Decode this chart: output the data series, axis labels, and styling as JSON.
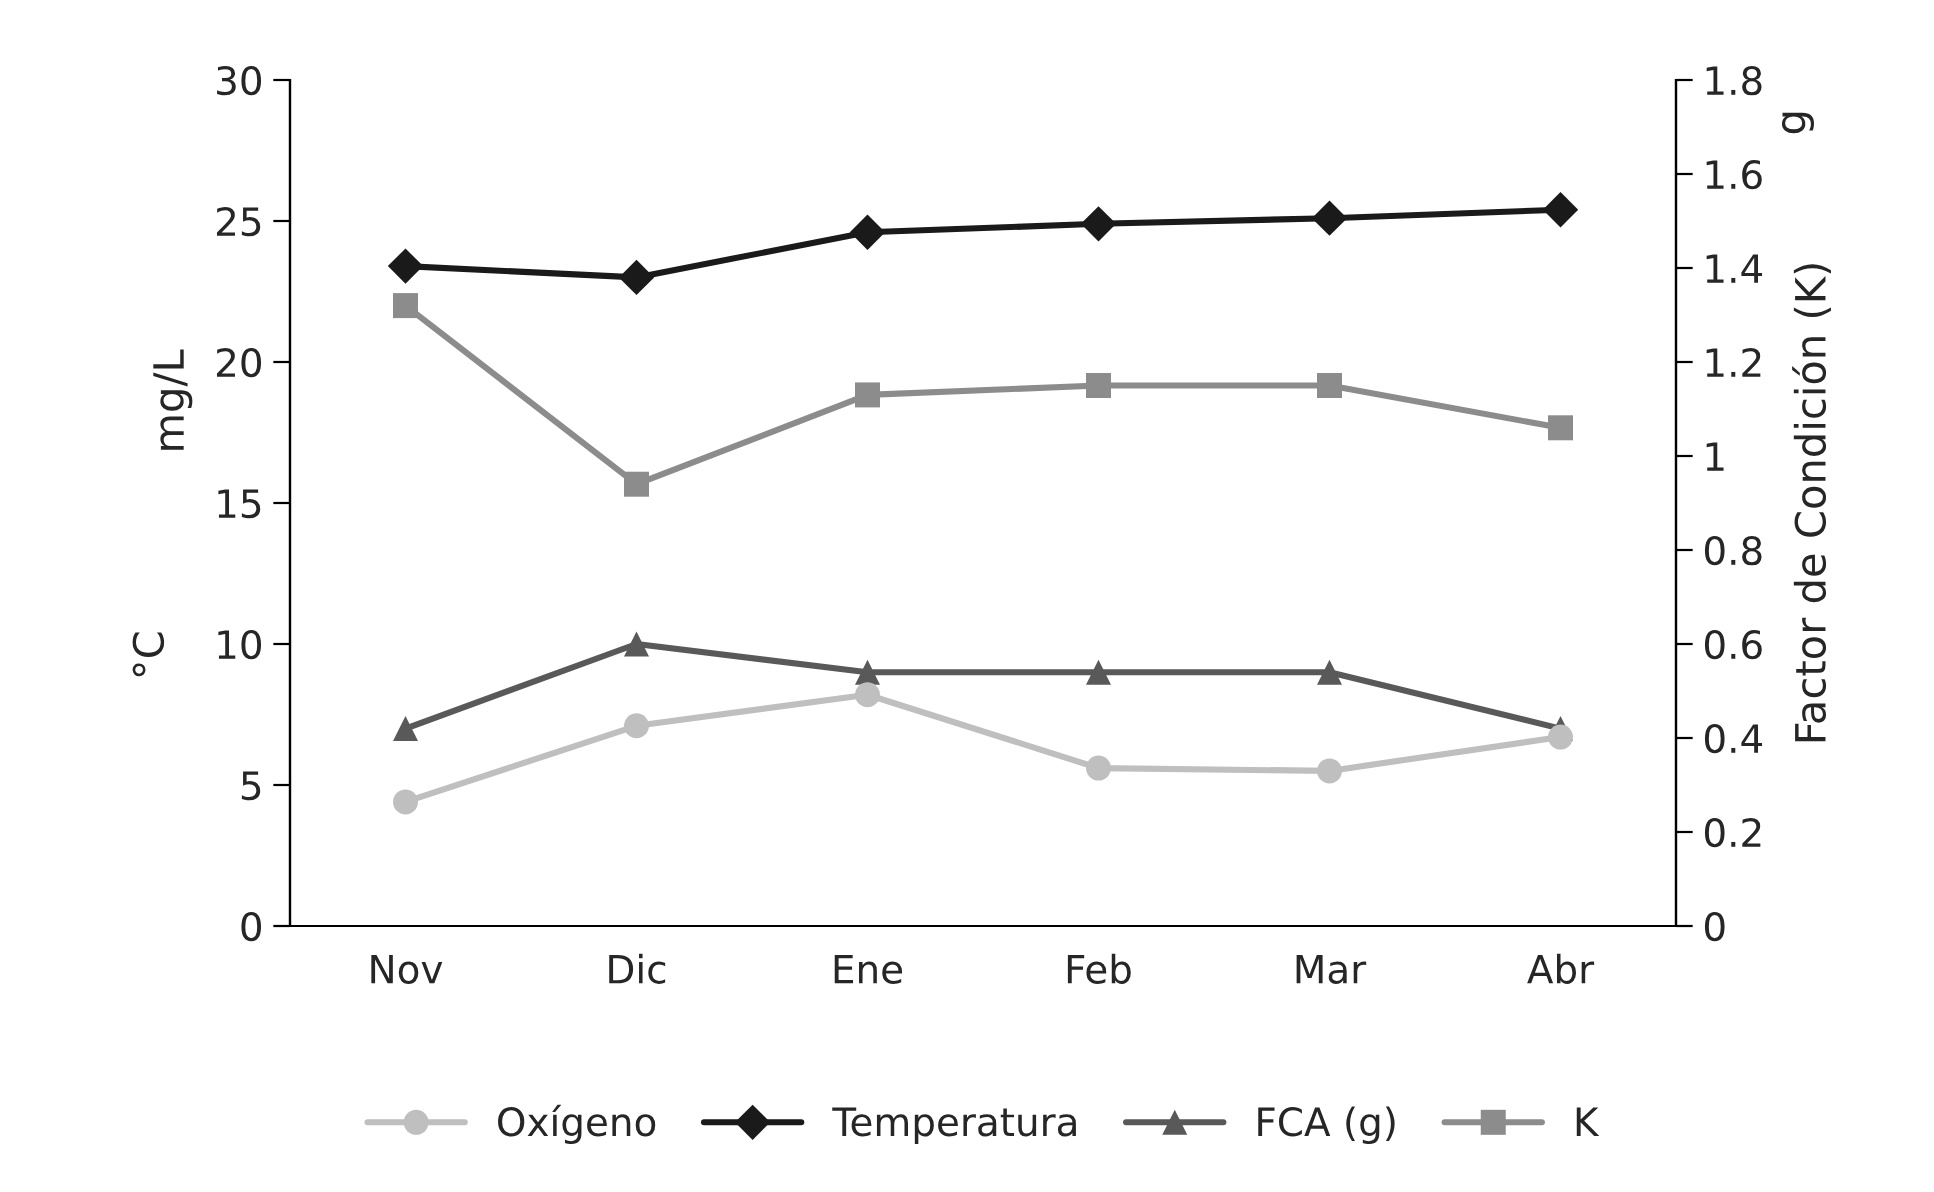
{
  "chart_data": {
    "type": "line",
    "ylabel": "°C",
    "y2label": "Factor de Condición (K)",
    "annotations": [
      "mg/L",
      "g"
    ],
    "categories": [
      "Nov",
      "Dic",
      "Ene",
      "Feb",
      "Mar",
      "Abr"
    ],
    "series": [
      {
        "name": "Oxígeno",
        "color": "#bfbfbf",
        "marker": "circle",
        "values": [
          4.4,
          7.1,
          8.2,
          5.6,
          5.5,
          6.7
        ]
      },
      {
        "name": "Temperatura",
        "color": "#1a1a1a",
        "marker": "diamond",
        "values": [
          23.4,
          23.0,
          24.6,
          24.9,
          25.1,
          25.4
        ]
      },
      {
        "name": "FCA (g)",
        "color": "#595959",
        "marker": "triangle",
        "axis": "y2",
        "values": [
          0.42,
          0.6,
          0.54,
          0.54,
          0.54,
          0.42
        ]
      },
      {
        "name": "K",
        "color": "#8c8c8c",
        "marker": "square",
        "axis": "y2",
        "values": [
          1.32,
          0.94,
          1.13,
          1.15,
          1.15,
          1.06
        ]
      }
    ],
    "ylim": [
      0,
      30
    ],
    "yticks": [
      0,
      5,
      10,
      15,
      20,
      25,
      30
    ],
    "y2lim": [
      0,
      1.8
    ],
    "y2ticks": [
      0,
      {
        "value": 0.2,
        "label": "0.2"
      },
      {
        "value": 0.4,
        "label": "0.4"
      },
      {
        "value": 0.6,
        "label": "0.6"
      },
      {
        "value": 0.8,
        "label": "0.8"
      },
      {
        "value": 1,
        "label": "1"
      },
      {
        "value": 1.2,
        "label": "1.2"
      },
      {
        "value": 1.4,
        "label": "1.4"
      },
      {
        "value": 1.6,
        "label": "1.6"
      },
      {
        "value": 1.8,
        "label": "1.8"
      }
    ],
    "legend": "bottom",
    "grid": false,
    "line_style": "solid"
  }
}
